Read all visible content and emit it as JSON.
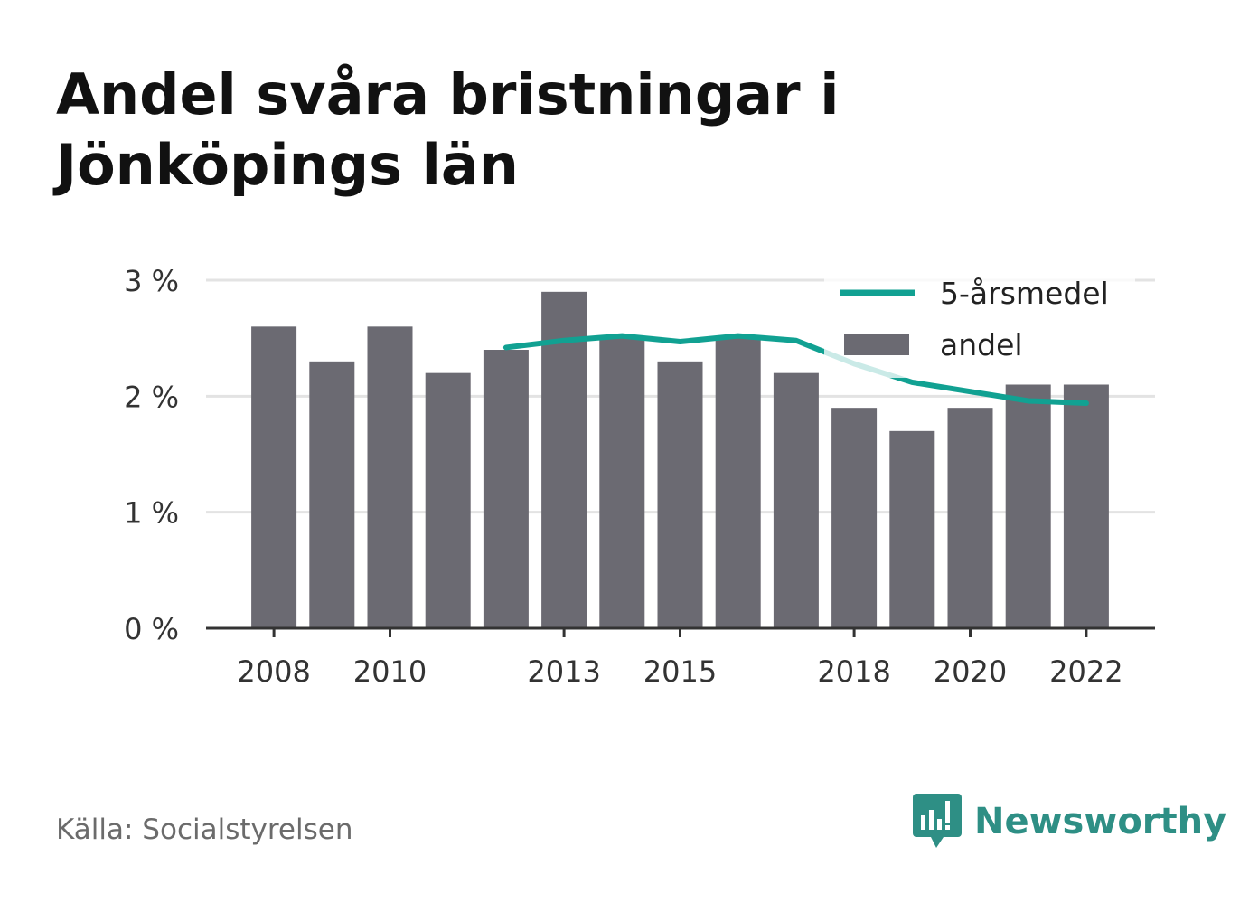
{
  "title": "Andel svåra bristningar i Jönköpings län",
  "source": "Källa: Socialstyrelsen",
  "brand": "Newsworthy",
  "colors": {
    "bar": "#6b6a72",
    "line": "#11a192",
    "line_faded": "#bfe6e1",
    "grid": "#e3e3e3",
    "axis": "#333333",
    "brand": "#2e8f85"
  },
  "chart_data": {
    "type": "bar",
    "x": [
      2008,
      2009,
      2010,
      2011,
      2012,
      2013,
      2014,
      2015,
      2016,
      2017,
      2018,
      2019,
      2020,
      2021,
      2022
    ],
    "series": [
      {
        "name": "andel",
        "type": "bar",
        "values": [
          2.6,
          2.3,
          2.6,
          2.2,
          2.4,
          2.9,
          2.5,
          2.3,
          2.5,
          2.2,
          1.9,
          1.7,
          1.9,
          2.1,
          2.1
        ]
      },
      {
        "name": "5-årsmedel",
        "type": "line",
        "values": [
          null,
          null,
          null,
          null,
          2.42,
          2.48,
          2.52,
          2.47,
          2.52,
          2.48,
          2.28,
          2.12,
          2.04,
          1.96,
          1.94
        ]
      }
    ],
    "x_ticks": [
      2008,
      2010,
      2013,
      2015,
      2018,
      2020,
      2022
    ],
    "x_tick_labels": [
      "2008",
      "2010",
      "2013",
      "2015",
      "2018",
      "2020",
      "2022"
    ],
    "y_ticks": [
      0,
      1,
      2,
      3
    ],
    "y_tick_labels": [
      "0 %",
      "1 %",
      "2 %",
      "3 %"
    ],
    "ylim": [
      0,
      3
    ],
    "xlabel": "",
    "ylabel": "",
    "grid": true,
    "legend": {
      "placement": "top-right",
      "entries": [
        {
          "label": "5-årsmedel",
          "kind": "line"
        },
        {
          "label": "andel",
          "kind": "bar"
        }
      ]
    }
  }
}
